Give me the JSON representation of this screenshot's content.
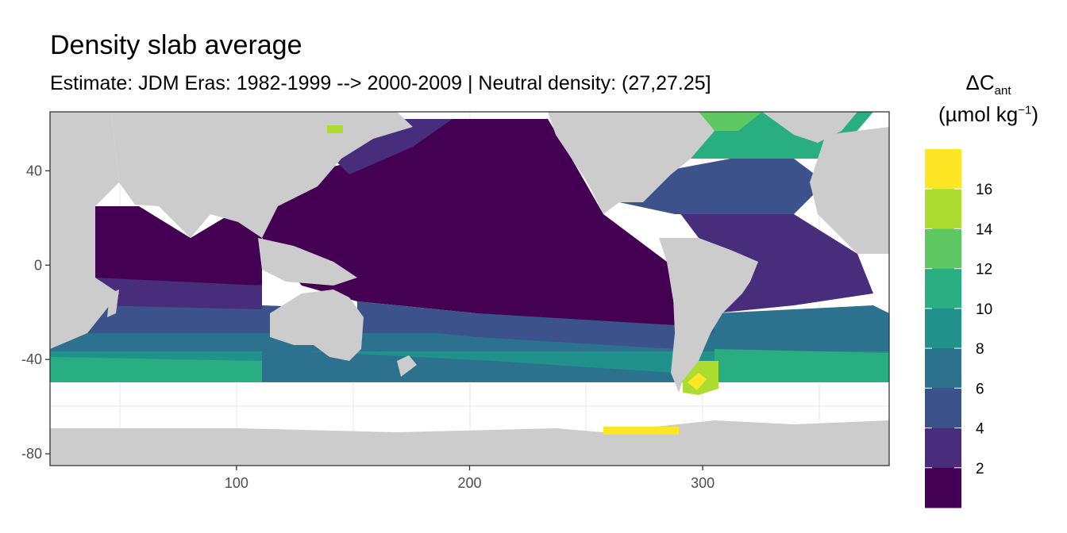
{
  "title": "Density slab average",
  "subtitle": "Estimate: JDM Eras: 1982-1999 --> 2000-2009 | Neutral density: (27,27.25]",
  "legend": {
    "symbol": "ΔC",
    "subscript": "ant",
    "unit_prefix": "(µmol kg",
    "unit_exponent": "−1",
    "unit_suffix": ")",
    "labels": [
      "16",
      "14",
      "12",
      "10",
      "8",
      "6",
      "4",
      "2"
    ],
    "colors": [
      "#fde725",
      "#addc30",
      "#5ec962",
      "#28ae80",
      "#21918c",
      "#2c728e",
      "#3b528b",
      "#472d7b",
      "#440154"
    ]
  },
  "map": {
    "x_ticks": [
      "100",
      "200",
      "300"
    ],
    "y_ticks": [
      "40",
      "0",
      "-40",
      "-80"
    ],
    "x_tick_values": [
      100,
      200,
      300
    ],
    "y_tick_values": [
      40,
      0,
      -40,
      -80
    ],
    "xlim": [
      20,
      380
    ],
    "ylim": [
      -85,
      65
    ],
    "land_color": "#cccccc"
  }
}
